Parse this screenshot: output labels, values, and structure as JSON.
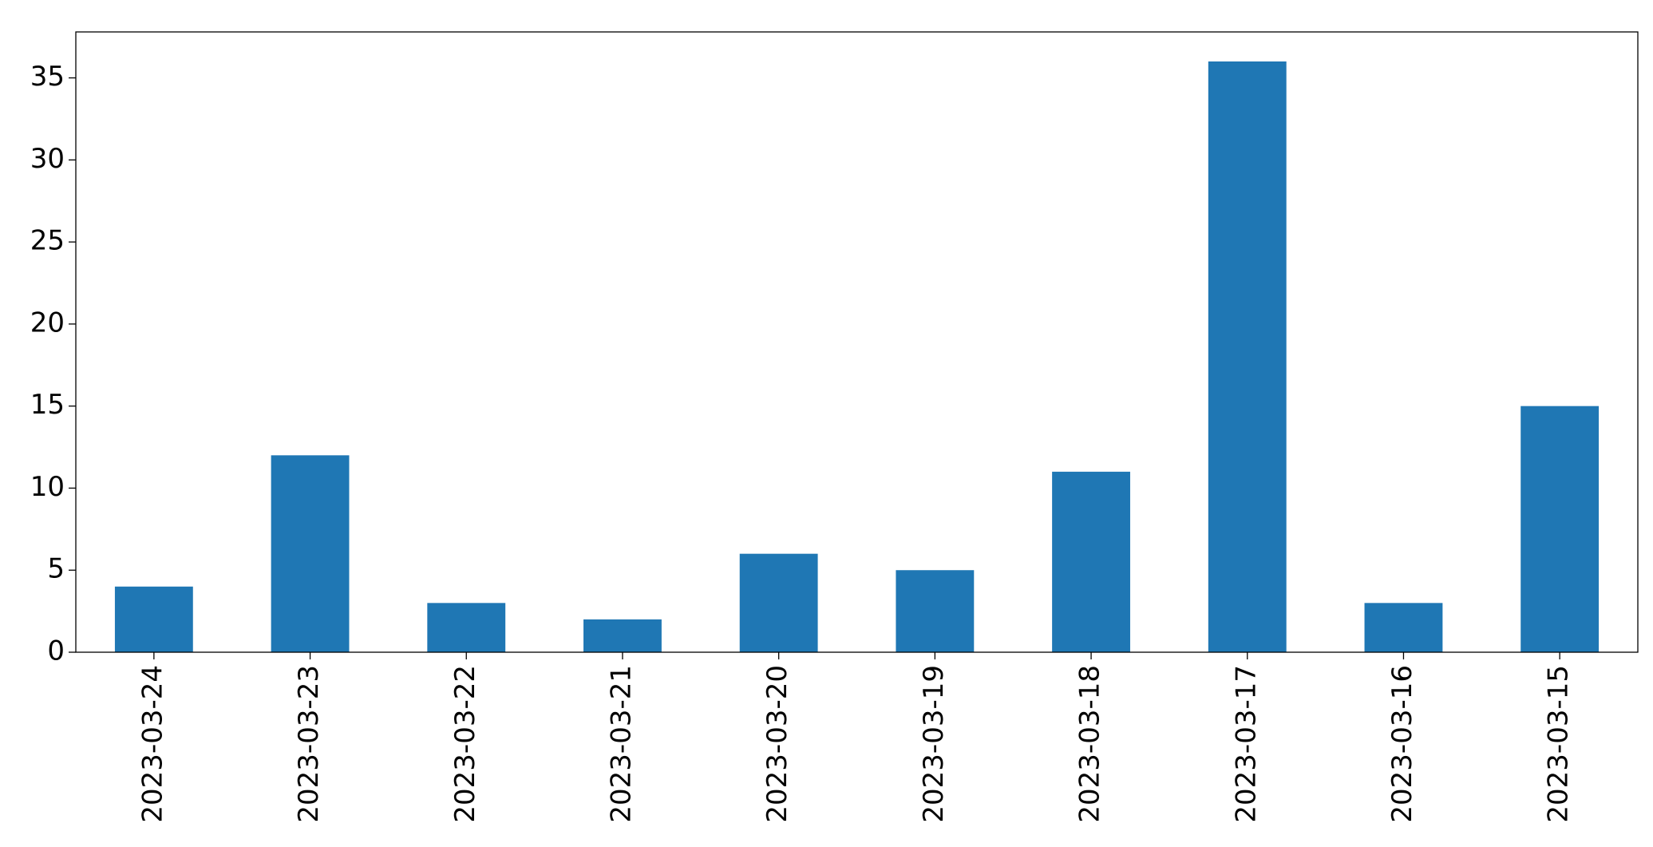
{
  "chart_data": {
    "type": "bar",
    "categories": [
      "2023-03-24",
      "2023-03-23",
      "2023-03-22",
      "2023-03-21",
      "2023-03-20",
      "2023-03-19",
      "2023-03-18",
      "2023-03-17",
      "2023-03-16",
      "2023-03-15"
    ],
    "values": [
      4,
      12,
      3,
      2,
      6,
      5,
      11,
      36,
      3,
      15
    ],
    "color": "#1f77b4",
    "ylim": [
      0,
      37.8
    ],
    "yticks": [
      0,
      5,
      10,
      15,
      20,
      25,
      30,
      35
    ],
    "grid": false
  }
}
